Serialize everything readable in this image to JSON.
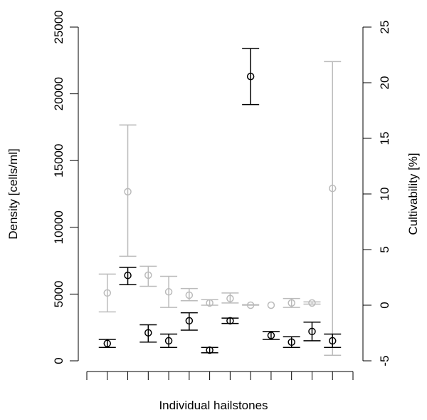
{
  "chart_data": {
    "type": "errorbar",
    "xlabel": "Individual hailstones",
    "ylabel": "Density [cells/ml]",
    "y2label": "Cultivability [%]",
    "x": [
      1,
      2,
      3,
      4,
      5,
      6,
      7,
      8,
      9,
      10,
      11,
      12
    ],
    "xlim": [
      0,
      13
    ],
    "xticks": [
      0,
      1,
      2,
      3,
      4,
      5,
      6,
      7,
      8,
      9,
      10,
      11,
      12,
      13
    ],
    "ylim": [
      0,
      25000
    ],
    "yticks": [
      0,
      5000,
      10000,
      15000,
      20000,
      25000
    ],
    "y2lim": [
      -5,
      25
    ],
    "y2ticks": [
      -5,
      0,
      5,
      10,
      15,
      20,
      25
    ],
    "series": [
      {
        "name": "Density",
        "color": "#000000",
        "values": [
          1300,
          6400,
          2100,
          1500,
          3000,
          800,
          3000,
          21300,
          1900,
          1400,
          2200,
          1500
        ],
        "lower": [
          1000,
          5700,
          1400,
          1000,
          2300,
          600,
          2800,
          19200,
          1600,
          1000,
          1500,
          1000
        ],
        "upper": [
          1600,
          7000,
          2700,
          2000,
          3600,
          1000,
          3200,
          23400,
          2200,
          1800,
          2900,
          2000
        ]
      },
      {
        "name": "Cultivability",
        "color": "#bbbbbb",
        "axis": "y2",
        "values": [
          1.1,
          10.2,
          2.7,
          1.2,
          0.9,
          0.2,
          0.6,
          0.0,
          0.0,
          0.2,
          0.2,
          10.5
        ],
        "lower": [
          -0.6,
          4.4,
          1.7,
          -0.2,
          0.4,
          0.0,
          0.2,
          0.0,
          null,
          -0.2,
          0.1,
          -4.5
        ],
        "upper": [
          2.8,
          16.2,
          3.5,
          2.6,
          1.5,
          0.5,
          1.1,
          0.05,
          null,
          0.6,
          0.3,
          21.9
        ]
      }
    ]
  }
}
